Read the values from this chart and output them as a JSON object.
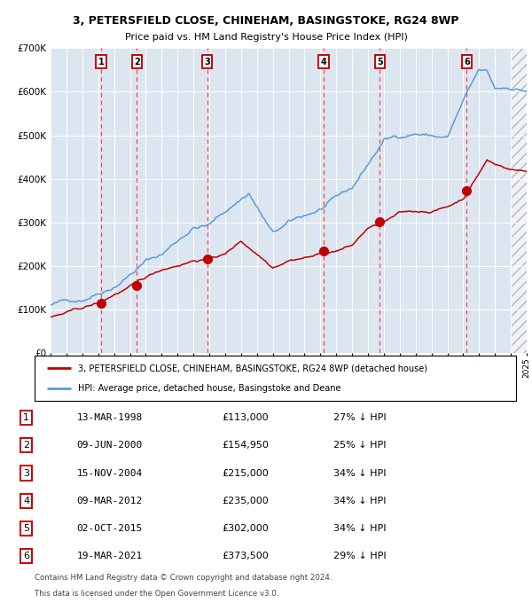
{
  "title1": "3, PETERSFIELD CLOSE, CHINEHAM, BASINGSTOKE, RG24 8WP",
  "title2": "Price paid vs. HM Land Registry's House Price Index (HPI)",
  "legend_line1": "3, PETERSFIELD CLOSE, CHINEHAM, BASINGSTOKE, RG24 8WP (detached house)",
  "legend_line2": "HPI: Average price, detached house, Basingstoke and Deane",
  "footer1": "Contains HM Land Registry data © Crown copyright and database right 2024.",
  "footer2": "This data is licensed under the Open Government Licence v3.0.",
  "transactions": [
    {
      "num": 1,
      "date": "13-MAR-1998",
      "price": 113000,
      "pct": "27% ↓ HPI",
      "year": 1998.2
    },
    {
      "num": 2,
      "date": "09-JUN-2000",
      "price": 154950,
      "pct": "25% ↓ HPI",
      "year": 2000.44
    },
    {
      "num": 3,
      "date": "15-NOV-2004",
      "price": 215000,
      "pct": "34% ↓ HPI",
      "year": 2004.87
    },
    {
      "num": 4,
      "date": "09-MAR-2012",
      "price": 235000,
      "pct": "34% ↓ HPI",
      "year": 2012.19
    },
    {
      "num": 5,
      "date": "02-OCT-2015",
      "price": 302000,
      "pct": "34% ↓ HPI",
      "year": 2015.75
    },
    {
      "num": 6,
      "date": "19-MAR-2021",
      "price": 373500,
      "pct": "29% ↓ HPI",
      "year": 2021.22
    }
  ],
  "hpi_color": "#5b9bd5",
  "price_color": "#c00000",
  "dot_color": "#c00000",
  "vline_color": "#ff4444",
  "bg_color": "#dce6f1",
  "grid_color": "#ffffff",
  "xmin": 1995,
  "xmax": 2025,
  "ymin": 0,
  "ymax": 700000
}
